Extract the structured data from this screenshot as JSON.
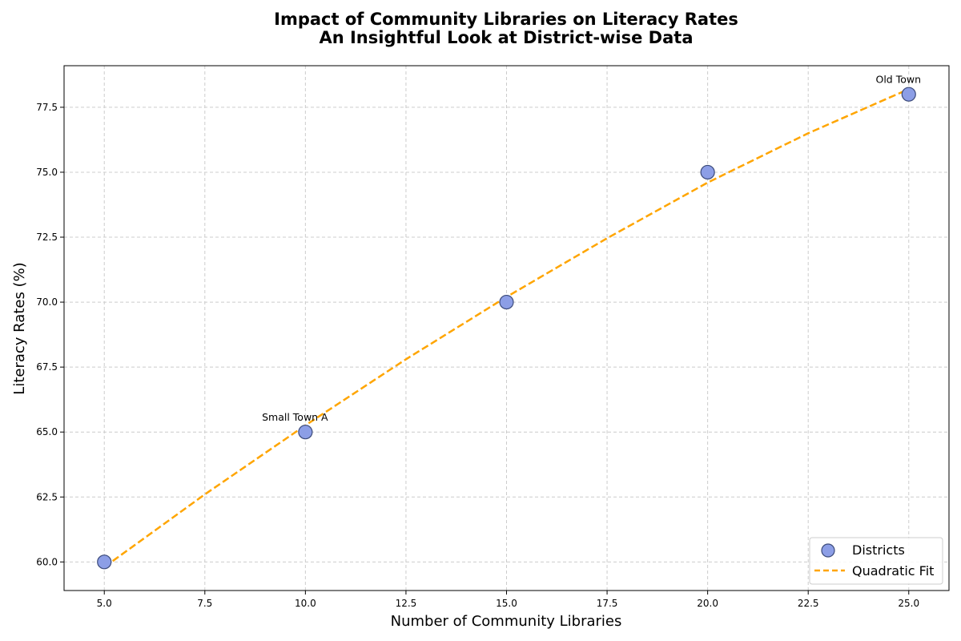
{
  "chart_data": {
    "type": "scatter",
    "title_lines": [
      "Impact of Community Libraries on Literacy Rates",
      "An Insightful Look at District-wise Data"
    ],
    "xlabel": "Number of Community Libraries",
    "ylabel": "Literacy Rates (%)",
    "xlim": [
      4.0,
      26.0
    ],
    "ylim": [
      58.9,
      79.1
    ],
    "xticks": [
      5.0,
      7.5,
      10.0,
      12.5,
      15.0,
      17.5,
      20.0,
      22.5,
      25.0
    ],
    "xtick_labels": [
      "5.0",
      "7.5",
      "10.0",
      "12.5",
      "15.0",
      "17.5",
      "20.0",
      "22.5",
      "25.0"
    ],
    "yticks": [
      60.0,
      62.5,
      65.0,
      67.5,
      70.0,
      72.5,
      75.0,
      77.5
    ],
    "ytick_labels": [
      "60.0",
      "62.5",
      "65.0",
      "67.5",
      "70.0",
      "72.5",
      "75.0",
      "77.5"
    ],
    "grid": true,
    "series": [
      {
        "name": "Districts",
        "kind": "scatter",
        "x": [
          5,
          10,
          15,
          20,
          25
        ],
        "y": [
          60,
          65,
          70,
          75,
          78
        ],
        "color": "#8c9ee6",
        "edge_color": "#3b4a7a"
      },
      {
        "name": "Quadratic Fit",
        "kind": "line",
        "style": "dashed",
        "color": "#ffa500",
        "x": [
          5,
          7.5,
          10,
          12.5,
          15,
          17.5,
          20,
          22.5,
          25
        ],
        "y": [
          59.8,
          62.6,
          65.26,
          67.8,
          70.2,
          72.46,
          74.6,
          76.5,
          78.2
        ]
      }
    ],
    "annotations": [
      {
        "text": "Small Town A",
        "x": 10,
        "y": 65
      },
      {
        "text": "Old Town",
        "x": 25,
        "y": 78
      }
    ],
    "legend_position": "lower-right"
  }
}
